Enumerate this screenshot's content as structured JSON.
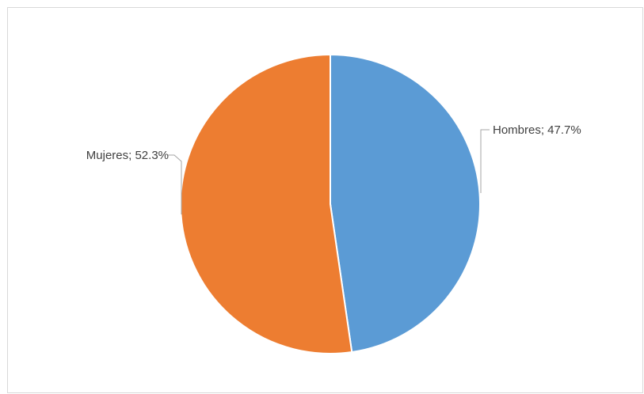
{
  "chart_data": {
    "type": "pie",
    "categories": [
      "Hombres",
      "Mujeres"
    ],
    "values": [
      47.7,
      52.3
    ],
    "unit": "%",
    "data_labels": [
      "Hombres; 47.7%",
      "Mujeres; 52.3%"
    ],
    "colors": [
      "#5b9bd5",
      "#ed7d31"
    ],
    "start_angle_deg": 0,
    "direction": "clockwise",
    "title": "",
    "legend": "none"
  }
}
